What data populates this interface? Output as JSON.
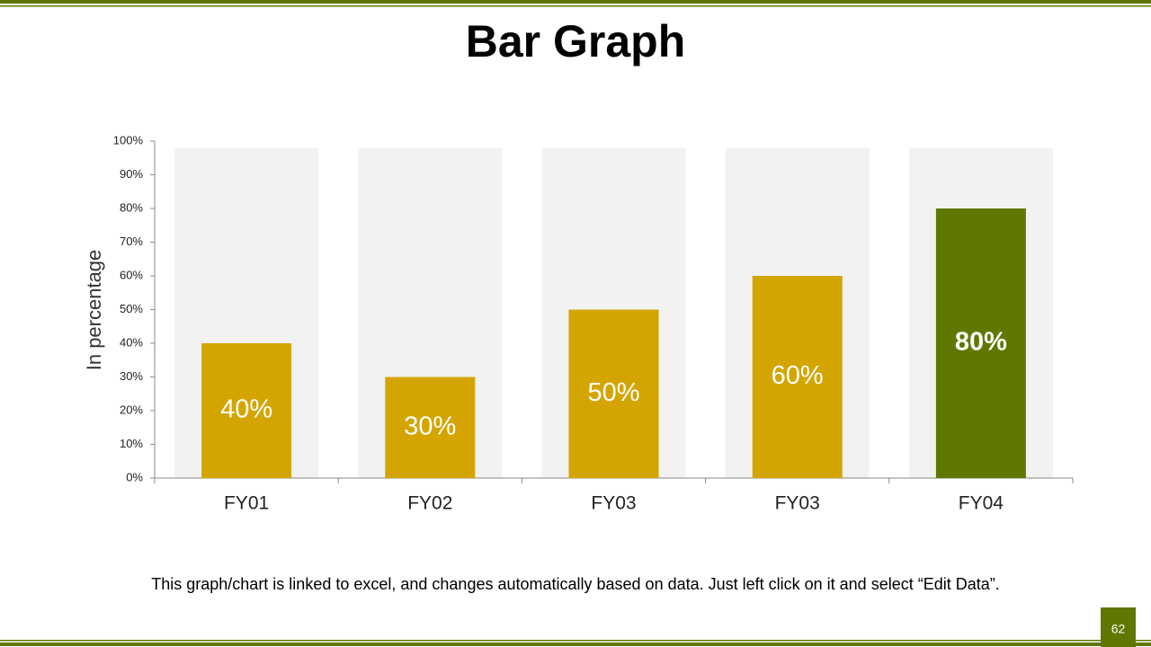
{
  "chart_data": {
    "type": "bar",
    "title": "Bar Graph",
    "ylabel": "In percentage",
    "categories": [
      "FY01",
      "FY02",
      "FY03",
      "FY03",
      "FY04"
    ],
    "values": [
      40,
      30,
      50,
      60,
      80
    ],
    "value_labels": [
      "40%",
      "30%",
      "50%",
      "60%",
      "80%"
    ],
    "colors": [
      "#d4a500",
      "#d4a500",
      "#d4a500",
      "#d4a500",
      "#5f7800"
    ],
    "ylim": [
      0,
      100
    ],
    "yticks": [
      {
        "value": 0,
        "label": "0%"
      },
      {
        "value": 10,
        "label": "10%"
      },
      {
        "value": 20,
        "label": "20%"
      },
      {
        "value": 30,
        "label": "30%"
      },
      {
        "value": 40,
        "label": "40%"
      },
      {
        "value": 50,
        "label": "50%"
      },
      {
        "value": 60,
        "label": "60%"
      },
      {
        "value": 70,
        "label": "70%"
      },
      {
        "value": 80,
        "label": "80%"
      },
      {
        "value": 90,
        "label": "90%"
      },
      {
        "value": 100,
        "label": "100%"
      }
    ],
    "grid": false,
    "footnote": "This graph/chart is linked to excel, and changes automatically based on data. Just left click on it and select “Edit Data”.",
    "page_number": "62"
  }
}
